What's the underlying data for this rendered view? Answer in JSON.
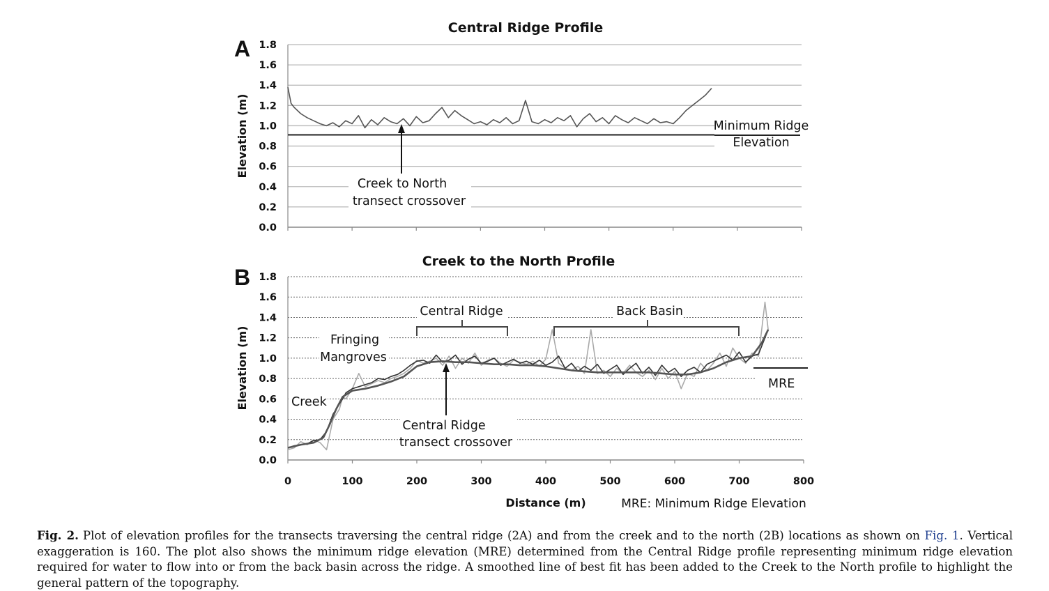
{
  "chart_data": [
    {
      "panel": "A",
      "type": "line",
      "title": "Central Ridge Profile",
      "ylabel": "Elevation (m)",
      "ylim": [
        0,
        1.8
      ],
      "yticks": [
        "0.0",
        "0.2",
        "0.4",
        "0.6",
        "0.8",
        "1.0",
        "1.2",
        "1.4",
        "1.6",
        "1.8"
      ],
      "xlim": [
        0,
        800
      ],
      "grid": true,
      "series": [
        {
          "color": "#555555",
          "x": [
            0,
            5,
            10,
            20,
            30,
            40,
            50,
            60,
            70,
            80,
            90,
            100,
            110,
            120,
            130,
            140,
            150,
            160,
            170,
            180,
            190,
            200,
            210,
            220,
            230,
            240,
            250,
            260,
            270,
            280,
            290,
            300,
            310,
            320,
            330,
            340,
            350,
            360,
            370,
            380,
            390,
            400,
            410,
            420,
            430,
            440,
            450,
            460,
            470,
            480,
            490,
            500,
            510,
            520,
            530,
            540,
            550,
            560,
            570,
            580,
            590,
            600,
            610,
            620,
            630,
            640,
            650,
            660
          ],
          "y": [
            1.38,
            1.22,
            1.18,
            1.12,
            1.08,
            1.05,
            1.02,
            1.0,
            1.03,
            0.99,
            1.05,
            1.02,
            1.1,
            0.98,
            1.06,
            1.01,
            1.08,
            1.04,
            1.02,
            1.07,
            1.0,
            1.09,
            1.03,
            1.05,
            1.12,
            1.18,
            1.08,
            1.15,
            1.1,
            1.06,
            1.02,
            1.04,
            1.01,
            1.06,
            1.03,
            1.08,
            1.02,
            1.05,
            1.25,
            1.04,
            1.02,
            1.06,
            1.03,
            1.08,
            1.05,
            1.1,
            0.99,
            1.07,
            1.12,
            1.04,
            1.08,
            1.02,
            1.1,
            1.06,
            1.03,
            1.08,
            1.05,
            1.02,
            1.07,
            1.03,
            1.04,
            1.02,
            1.08,
            1.15,
            1.2,
            1.25,
            1.3,
            1.37
          ]
        }
      ],
      "reference_line": {
        "label": "Minimum Ridge Elevation",
        "label_lines": [
          "Minimum Ridge",
          "Elevation"
        ],
        "y": 0.91
      },
      "annotation": {
        "lines": [
          "Creek to North",
          "transect crossover"
        ],
        "x": 175
      }
    },
    {
      "panel": "B",
      "type": "line",
      "title": "Creek to the North Profile",
      "xlabel": "Distance (m)",
      "ylabel": "Elevation (m)",
      "ylim": [
        0,
        1.8
      ],
      "yticks": [
        "0.0",
        "0.2",
        "0.4",
        "0.6",
        "0.8",
        "1.0",
        "1.2",
        "1.4",
        "1.6",
        "1.8"
      ],
      "xlim": [
        0,
        800
      ],
      "xticks": [
        "0",
        "100",
        "200",
        "300",
        "400",
        "500",
        "600",
        "700",
        "800"
      ],
      "grid": true,
      "series": [
        {
          "color": "#aaaaaa",
          "x": [
            0,
            10,
            20,
            30,
            40,
            50,
            60,
            70,
            80,
            85,
            90,
            100,
            110,
            120,
            130,
            140,
            150,
            160,
            170,
            180,
            190,
            200,
            210,
            220,
            230,
            240,
            250,
            260,
            270,
            280,
            290,
            300,
            310,
            320,
            330,
            340,
            350,
            360,
            370,
            380,
            390,
            400,
            410,
            420,
            430,
            440,
            450,
            460,
            470,
            480,
            490,
            500,
            510,
            520,
            530,
            540,
            550,
            560,
            570,
            580,
            590,
            600,
            610,
            620,
            630,
            640,
            650,
            660,
            670,
            680,
            690,
            700,
            710,
            720,
            730,
            740,
            745
          ],
          "y": [
            0.1,
            0.12,
            0.18,
            0.15,
            0.2,
            0.17,
            0.1,
            0.4,
            0.5,
            0.62,
            0.6,
            0.7,
            0.85,
            0.72,
            0.75,
            0.78,
            0.76,
            0.8,
            0.82,
            0.85,
            0.9,
            0.98,
            0.95,
            0.97,
            1.0,
            0.93,
            1.02,
            0.9,
            1.0,
            0.95,
            1.05,
            0.93,
            0.98,
            1.0,
            0.95,
            0.92,
            0.98,
            0.96,
            0.94,
            0.97,
            0.92,
            0.99,
            1.28,
            0.95,
            0.9,
            0.88,
            0.92,
            0.85,
            1.28,
            0.85,
            0.88,
            0.82,
            0.9,
            0.85,
            0.93,
            0.86,
            0.82,
            0.88,
            0.79,
            0.9,
            0.8,
            0.87,
            0.7,
            0.85,
            0.82,
            0.95,
            0.88,
            0.95,
            1.05,
            0.92,
            1.1,
            1.0,
            0.95,
            1.05,
            1.02,
            1.55,
            1.28
          ]
        },
        {
          "color": "#333333",
          "x": [
            0,
            10,
            20,
            30,
            40,
            50,
            60,
            70,
            80,
            85,
            90,
            100,
            110,
            120,
            130,
            140,
            150,
            160,
            170,
            180,
            190,
            200,
            210,
            220,
            230,
            240,
            250,
            260,
            270,
            280,
            290,
            300,
            310,
            320,
            330,
            340,
            350,
            360,
            370,
            380,
            390,
            400,
            410,
            420,
            430,
            440,
            450,
            460,
            470,
            480,
            490,
            500,
            510,
            520,
            530,
            540,
            550,
            560,
            570,
            580,
            590,
            600,
            610,
            620,
            630,
            640,
            650,
            660,
            670,
            680,
            690,
            700,
            710,
            720,
            730,
            740,
            745
          ],
          "y": [
            0.12,
            0.14,
            0.15,
            0.16,
            0.19,
            0.2,
            0.28,
            0.45,
            0.55,
            0.6,
            0.66,
            0.7,
            0.72,
            0.74,
            0.76,
            0.8,
            0.79,
            0.82,
            0.84,
            0.88,
            0.93,
            0.97,
            0.98,
            0.95,
            1.03,
            0.96,
            0.98,
            1.03,
            0.94,
            0.99,
            1.02,
            0.95,
            0.97,
            1.0,
            0.93,
            0.96,
            0.99,
            0.95,
            0.97,
            0.94,
            0.98,
            0.93,
            0.96,
            1.02,
            0.9,
            0.95,
            0.87,
            0.92,
            0.88,
            0.94,
            0.85,
            0.89,
            0.93,
            0.84,
            0.9,
            0.95,
            0.85,
            0.91,
            0.83,
            0.93,
            0.86,
            0.9,
            0.82,
            0.88,
            0.91,
            0.86,
            0.94,
            0.97,
            1.0,
            1.03,
            0.98,
            1.06,
            0.96,
            1.02,
            1.04,
            1.2,
            1.28
          ]
        },
        {
          "color": "#555555",
          "x": [
            0,
            20,
            40,
            55,
            65,
            75,
            85,
            100,
            120,
            140,
            160,
            180,
            200,
            220,
            240,
            260,
            280,
            300,
            320,
            340,
            360,
            380,
            400,
            420,
            440,
            460,
            480,
            500,
            520,
            540,
            560,
            580,
            600,
            620,
            640,
            660,
            680,
            700,
            720,
            735,
            745
          ],
          "y": [
            0.12,
            0.15,
            0.17,
            0.22,
            0.35,
            0.5,
            0.62,
            0.68,
            0.7,
            0.73,
            0.77,
            0.82,
            0.92,
            0.96,
            0.97,
            0.96,
            0.96,
            0.95,
            0.94,
            0.94,
            0.93,
            0.93,
            0.92,
            0.9,
            0.88,
            0.87,
            0.86,
            0.86,
            0.86,
            0.86,
            0.86,
            0.85,
            0.84,
            0.84,
            0.86,
            0.9,
            0.96,
            1.0,
            1.02,
            1.15,
            1.28
          ]
        }
      ],
      "reference_line": {
        "label": "MRE",
        "y": 0.91
      },
      "annotations": [
        {
          "text": "Creek"
        },
        {
          "lines": [
            "Fringing",
            "Mangroves"
          ]
        },
        {
          "text": "Central Ridge",
          "span": [
            200,
            340
          ]
        },
        {
          "text": "Back Basin",
          "span": [
            412,
            700
          ]
        },
        {
          "lines": [
            "Central Ridge",
            "transect crossover"
          ],
          "x": 245
        }
      ],
      "footnote": "MRE: Minimum Ridge Elevation"
    }
  ],
  "caption": {
    "label": "Fig. 2.",
    "text_1": "Plot of elevation profiles for the transects traversing the central ridge (2A) and from the creek and to the north (2B) locations as shown on ",
    "ref": "Fig. 1",
    "text_2": ". Vertical exaggeration is 160. The plot also shows the minimum ridge elevation (MRE) determined from the Central Ridge profile representing minimum ridge elevation required for water to flow into or from the back basin across the ridge. A smoothed line of best fit has been added to the Creek to the North profile to highlight the general pattern of the topography."
  }
}
